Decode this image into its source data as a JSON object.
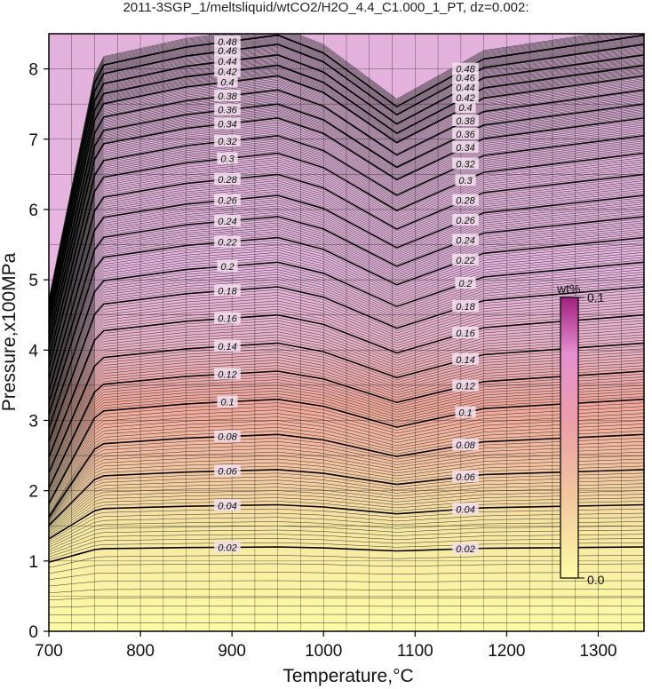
{
  "title": "2011-3SGP_1/meltsliquid/wtCO2/H2O_4.4_C1.000_1_PT, dz=0.002:",
  "colors": {
    "low": "#fdfca6",
    "mid": "#f2a79a",
    "high": "#e8b6e0",
    "contour_major": "#000000",
    "contour_minor": "#333333"
  },
  "chart_data": {
    "type": "contour",
    "xlabel": "Temperature,°C",
    "ylabel": "Pressure,x100MPa",
    "xlim": [
      700,
      1350
    ],
    "ylim": [
      0,
      8.5
    ],
    "xticks": [
      700,
      800,
      900,
      1000,
      1100,
      1200,
      1300
    ],
    "yticks": [
      0,
      1,
      2,
      3,
      4,
      5,
      6,
      7,
      8
    ],
    "grid": true,
    "contour_step": 0.002,
    "major_contour_step": 0.02,
    "major_levels": [
      0.02,
      0.04,
      0.06,
      0.08,
      0.1,
      0.12,
      0.14,
      0.16,
      0.18,
      0.2,
      0.22,
      0.24,
      0.26,
      0.28,
      0.3,
      0.32,
      0.34,
      0.36,
      0.38,
      0.4,
      0.42,
      0.44,
      0.46,
      0.48
    ],
    "level_pressure_at_1350C": {
      "levels": [
        0.02,
        0.04,
        0.06,
        0.08,
        0.1,
        0.12,
        0.14,
        0.16,
        0.18,
        0.2,
        0.22,
        0.24,
        0.26,
        0.28,
        0.3,
        0.32,
        0.34,
        0.36,
        0.38,
        0.4,
        0.42,
        0.44,
        0.46,
        0.48
      ],
      "pressure": [
        1.2,
        1.8,
        2.3,
        2.8,
        3.3,
        3.7,
        4.1,
        4.5,
        4.9,
        5.25,
        5.6,
        5.9,
        6.2,
        6.5,
        6.8,
        7.05,
        7.3,
        7.5,
        7.7,
        7.9,
        8.05,
        8.2,
        8.35,
        8.48
      ]
    },
    "colorbar": {
      "label": "wt%",
      "min_label": "0.0",
      "max_label": "0.1",
      "range": [
        0.0,
        0.1
      ]
    }
  }
}
